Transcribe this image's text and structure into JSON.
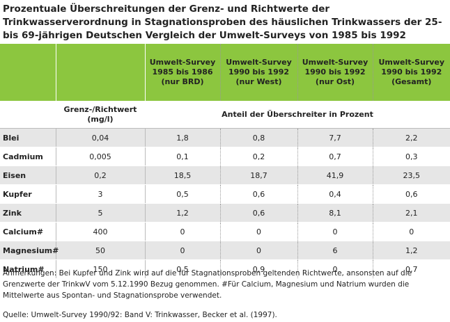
{
  "header": {
    "title": "Prozentuale Überschreitungen der Grenz- und Richtwerte der Trinkwasserverordnung in Stagnationsproben des häuslichen Trinkwassers  der 25- bis 69-jährigen Deutschen Vergleich der Umwelt-Surveys von 1985 bis 1992"
  },
  "table": {
    "columns": [
      "Umwelt-Survey\n1985 bis 1986\n(nur BRD)",
      "Umwelt-Survey\n1990 bis 1992\n(nur West)",
      "Umwelt-Survey\n1990 bis 1992\n(nur Ost)",
      "Umwelt-Survey\n1990 bis 1992\n(Gesamt)"
    ],
    "limit_header": "Grenz-/Richtwert\n(mg/l)",
    "share_header": "Anteil der Überschreiter in Prozent",
    "rows": [
      [
        "Blei",
        "0,04",
        "1,8",
        "0,8",
        "7,7",
        "2,2"
      ],
      [
        "Cadmium",
        "0,005",
        "0,1",
        "0,2",
        "0,7",
        "0,3"
      ],
      [
        "Eisen",
        "0,2",
        "18,5",
        "18,7",
        "41,9",
        "23,5"
      ],
      [
        "Kupfer",
        "3",
        "0,5",
        "0,6",
        "0,4",
        "0,6"
      ],
      [
        "Zink",
        "5",
        "1,2",
        "0,6",
        "8,1",
        "2,1"
      ],
      [
        "Calcium#",
        "400",
        "0",
        "0",
        "0",
        "0"
      ],
      [
        "Magnesium#",
        "50",
        "0",
        "0",
        "6",
        "1,2"
      ],
      [
        "Natrium#",
        "150",
        "0,5",
        "0,9",
        "0",
        "0,7"
      ]
    ]
  },
  "footer": {
    "note": "Anmerkungen: Bei Kupfer und Zink wird auf die für Stagnationsproben geltenden Richtwerte, ansonsten auf die Grenzwerte der TrinkwV vom 5.12.1990 Bezug genommen. #Für Calcium, Magnesium und Natrium wurden die Mittelwerte aus Spontan- und Stagnationsprobe verwendet.",
    "source": "Quelle: Umwelt-Survey 1990/92: Band V: Trinkwasser, Becker et al. (1997)."
  }
}
